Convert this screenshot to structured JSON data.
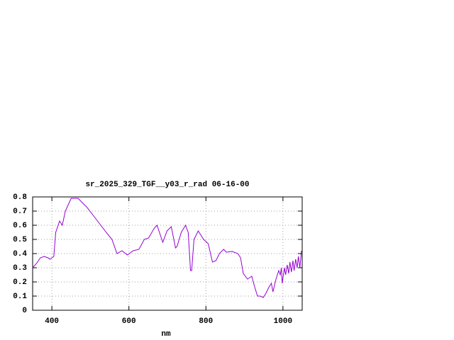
{
  "chart_data": {
    "type": "line",
    "title": "sr_2025_329_TGF__y03_r_rad 06-16-00",
    "x_label": "nm",
    "xlim": [
      350,
      1050
    ],
    "ylim": [
      0,
      0.8
    ],
    "xticks": [
      400,
      600,
      800,
      1000
    ],
    "yticks": [
      0,
      0.1,
      0.2,
      0.3,
      0.4,
      0.5,
      0.6,
      0.7,
      0.8
    ],
    "grid": true,
    "series": [
      {
        "color": "#9400d3",
        "x": [
          350,
          360,
          370,
          380,
          390,
          395,
          405,
          410,
          420,
          427,
          435,
          450,
          468,
          486,
          490,
          510,
          541,
          556,
          569,
          582,
          596,
          611,
          626,
          640,
          651,
          666,
          673,
          688,
          699,
          710,
          721,
          725,
          736,
          747,
          754,
          760,
          763,
          769,
          780,
          794,
          806,
          817,
          826,
          835,
          846,
          853,
          868,
          883,
          890,
          897,
          908,
          919,
          927,
          934,
          941,
          949,
          956,
          963,
          970,
          974,
          982,
          989,
          993,
          996,
          998,
          1004,
          1007,
          1011,
          1015,
          1018,
          1022,
          1026,
          1029,
          1033,
          1037,
          1040,
          1044,
          1048
        ],
        "values": [
          0.3,
          0.33,
          0.37,
          0.38,
          0.37,
          0.36,
          0.38,
          0.55,
          0.63,
          0.6,
          0.7,
          0.79,
          0.79,
          0.74,
          0.73,
          0.66,
          0.55,
          0.5,
          0.4,
          0.42,
          0.39,
          0.42,
          0.43,
          0.5,
          0.51,
          0.58,
          0.6,
          0.48,
          0.56,
          0.59,
          0.44,
          0.45,
          0.55,
          0.6,
          0.55,
          0.28,
          0.28,
          0.5,
          0.56,
          0.5,
          0.47,
          0.34,
          0.35,
          0.4,
          0.43,
          0.41,
          0.415,
          0.4,
          0.37,
          0.26,
          0.22,
          0.24,
          0.16,
          0.1,
          0.1,
          0.09,
          0.12,
          0.16,
          0.19,
          0.13,
          0.22,
          0.28,
          0.25,
          0.3,
          0.19,
          0.3,
          0.25,
          0.32,
          0.26,
          0.34,
          0.27,
          0.35,
          0.28,
          0.36,
          0.3,
          0.38,
          0.3,
          0.42
        ]
      }
    ]
  }
}
